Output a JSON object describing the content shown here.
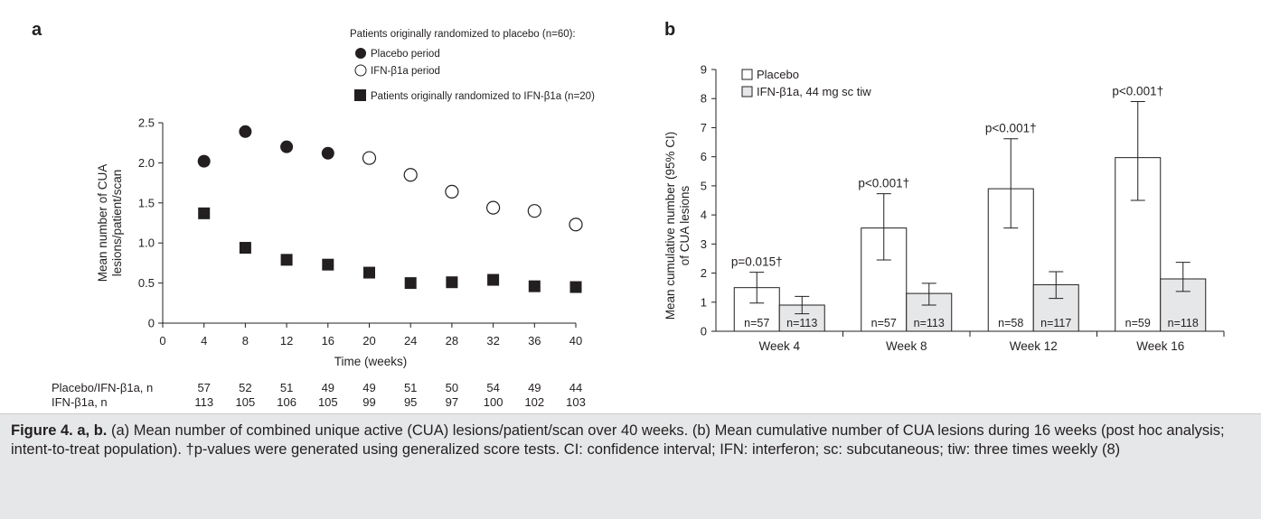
{
  "figure": {
    "caption_lead": "Figure 4. a, b.",
    "caption_text": " (a) Mean number of combined unique active (CUA) lesions/patient/scan over 40 weeks. (b) Mean cumulative number of CUA lesions during 16 weeks (post hoc analysis; intent-to-treat population). †p-values were generated using generalized score tests. CI: confidence interval; IFN: interferon; sc: subcutaneous; tiw: three times weekly (8)"
  },
  "chart_data": [
    {
      "panel": "a",
      "type": "scatter",
      "xlabel": "Time (weeks)",
      "ylabel_lines": [
        "Mean number of CUA",
        "lesions/patient/scan"
      ],
      "xlim": [
        0,
        40
      ],
      "ylim": [
        0,
        2.5
      ],
      "xticks": [
        0,
        4,
        8,
        12,
        16,
        20,
        24,
        28,
        32,
        36,
        40
      ],
      "yticks": [
        0,
        0.5,
        1.0,
        1.5,
        2.0,
        2.5
      ],
      "ytick_labels": [
        "0",
        "0.5",
        "1.0",
        "1.5",
        "2.0",
        "2.5"
      ],
      "legend_heading": "Patients originally randomized to placebo (n=60):",
      "legend_placement": "top-right",
      "series": [
        {
          "name": "Placebo period",
          "marker": "filled-circle",
          "x": [
            4,
            8,
            12,
            16
          ],
          "y": [
            2.02,
            2.39,
            2.2,
            2.12
          ]
        },
        {
          "name": "IFN-β1a period",
          "marker": "open-circle",
          "x": [
            20,
            24,
            28,
            32,
            36,
            40
          ],
          "y": [
            2.06,
            1.85,
            1.64,
            1.44,
            1.4,
            1.23
          ]
        },
        {
          "name": "Patients originally randomized to IFN-β1a (n=20)",
          "marker": "filled-square",
          "x": [
            4,
            8,
            12,
            16,
            20,
            24,
            28,
            32,
            36,
            40
          ],
          "y": [
            1.37,
            0.94,
            0.79,
            0.73,
            0.63,
            0.5,
            0.51,
            0.54,
            0.46,
            0.45
          ]
        }
      ],
      "n_table": [
        {
          "label": "Placebo/IFN-β1a, n",
          "values": [
            "57",
            "52",
            "51",
            "49",
            "49",
            "51",
            "50",
            "54",
            "49",
            "44"
          ]
        },
        {
          "label": "IFN-β1a, n",
          "values": [
            "113",
            "105",
            "106",
            "105",
            "99",
            "95",
            "97",
            "100",
            "102",
            "103"
          ]
        }
      ]
    },
    {
      "panel": "b",
      "type": "bar",
      "ylabel_lines": [
        "Mean cumulative number (95% CI)",
        "of CUA lesions"
      ],
      "ylim": [
        0,
        9
      ],
      "yticks": [
        0,
        1,
        2,
        3,
        4,
        5,
        6,
        7,
        8,
        9
      ],
      "categories": [
        "Week 4",
        "Week 8",
        "Week 12",
        "Week 16"
      ],
      "legend_placement": "top-left",
      "series": [
        {
          "name": "Placebo",
          "color": "#ffffff",
          "values": [
            1.5,
            3.55,
            4.9,
            5.97
          ],
          "ci_low": [
            0.97,
            2.45,
            3.55,
            4.5
          ],
          "ci_high": [
            2.03,
            4.73,
            6.62,
            7.9
          ],
          "n_labels": [
            "n=57",
            "n=57",
            "n=58",
            "n=59"
          ]
        },
        {
          "name": "IFN-β1a, 44 mg sc tiw",
          "color": "#e6e7e8",
          "values": [
            0.9,
            1.3,
            1.6,
            1.8
          ],
          "ci_low": [
            0.6,
            0.9,
            1.13,
            1.37
          ],
          "ci_high": [
            1.2,
            1.65,
            2.05,
            2.37
          ],
          "n_labels": [
            "n=113",
            "n=113",
            "n=117",
            "n=118"
          ]
        }
      ],
      "annotations": [
        "p=0.015†",
        "p<0.001†",
        "p<0.001†",
        "p<0.001†"
      ]
    }
  ]
}
